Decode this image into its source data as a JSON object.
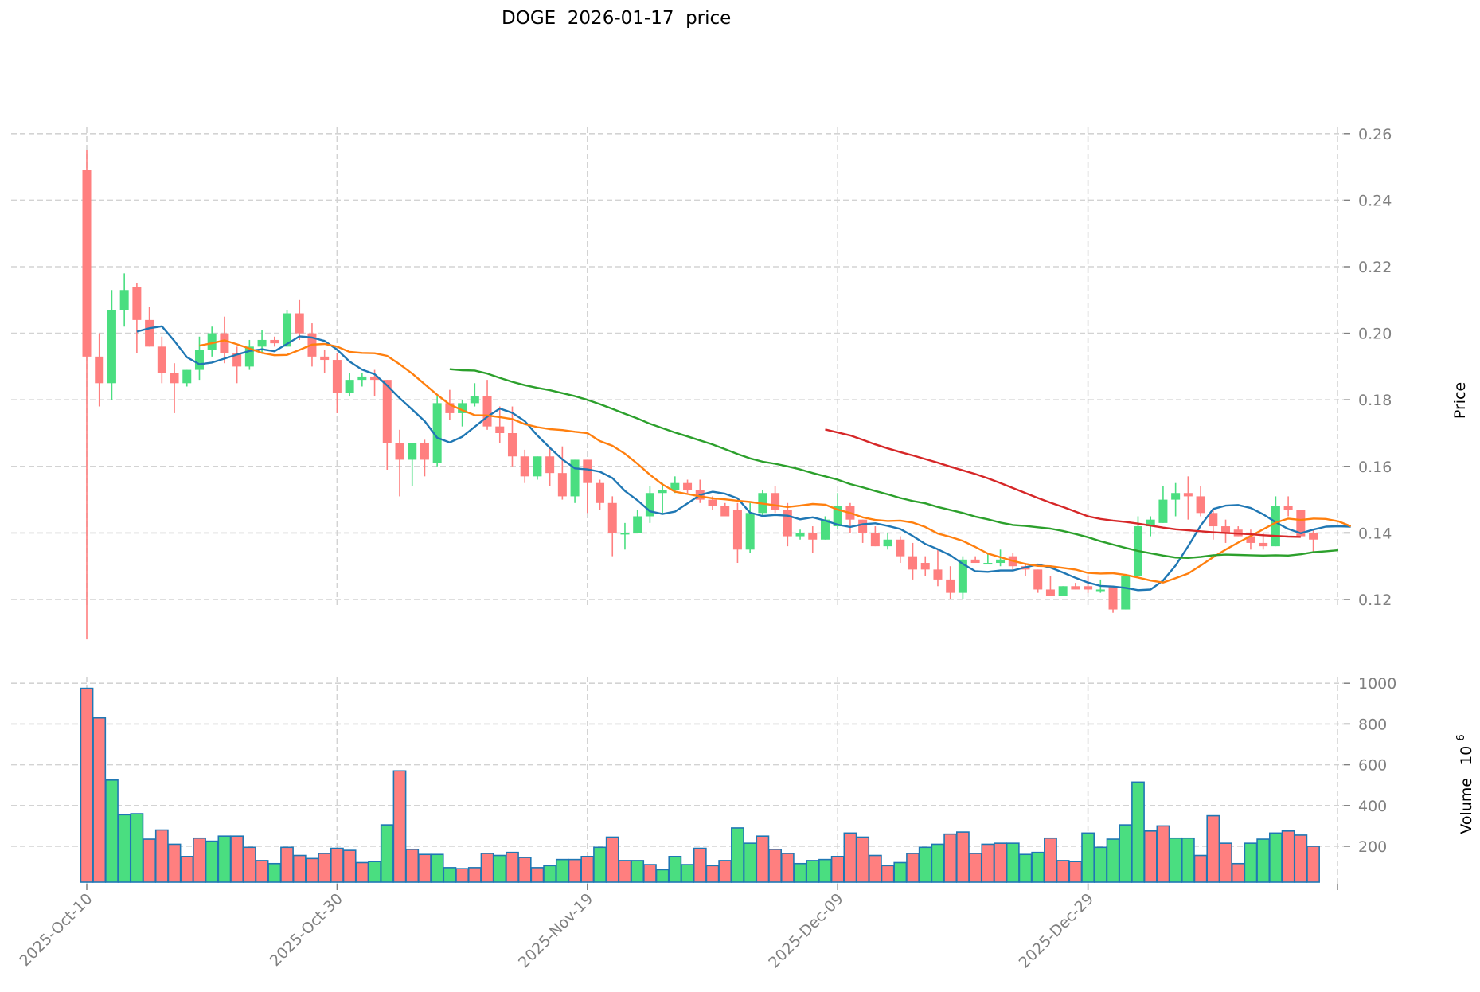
{
  "title": "DOGE  2026-01-17  price",
  "colors": {
    "up": "#4ade80",
    "down": "#ff7f7f",
    "volume_edge": "#1f77b4",
    "ma_short": "#1f77b4",
    "ma_mid": "#ff7f0e",
    "ma_long": "#2ca02c",
    "ma_longest": "#d62728",
    "grid": "#d3d3d3",
    "tick": "#808080"
  },
  "chart_data": [
    {
      "type": "candlestick",
      "title": "DOGE  2026-01-17  price",
      "ylabel": "Price",
      "ylim": [
        0.1,
        0.26
      ],
      "yticks": [
        0.12,
        0.14,
        0.16,
        0.18,
        0.2,
        0.22,
        0.24,
        0.26
      ],
      "ytick_labels": [
        "0.12",
        "0.14",
        "0.16",
        "0.18",
        "0.20",
        "0.22",
        "0.24",
        "0.26"
      ],
      "xticks": [
        "2025-Oct-10",
        "2025-Oct-30",
        "2025-Nov-19",
        "2025-Dec-09",
        "2025-Dec-29"
      ],
      "xtick_day_index": [
        0,
        20,
        40,
        60,
        80
      ],
      "grid": true,
      "start_date": "2025-10-10",
      "end_date": "2026-01-17",
      "ohlc": [
        [
          0.249,
          0.255,
          0.108,
          0.193
        ],
        [
          0.193,
          0.2,
          0.178,
          0.185
        ],
        [
          0.185,
          0.213,
          0.18,
          0.207
        ],
        [
          0.207,
          0.218,
          0.202,
          0.213
        ],
        [
          0.214,
          0.215,
          0.194,
          0.204
        ],
        [
          0.204,
          0.208,
          0.196,
          0.196
        ],
        [
          0.196,
          0.199,
          0.185,
          0.188
        ],
        [
          0.188,
          0.191,
          0.176,
          0.185
        ],
        [
          0.185,
          0.189,
          0.184,
          0.189
        ],
        [
          0.189,
          0.199,
          0.186,
          0.195
        ],
        [
          0.195,
          0.202,
          0.193,
          0.2
        ],
        [
          0.2,
          0.205,
          0.191,
          0.194
        ],
        [
          0.194,
          0.196,
          0.185,
          0.19
        ],
        [
          0.19,
          0.198,
          0.189,
          0.196
        ],
        [
          0.196,
          0.201,
          0.194,
          0.198
        ],
        [
          0.198,
          0.199,
          0.196,
          0.197
        ],
        [
          0.196,
          0.207,
          0.196,
          0.206
        ],
        [
          0.206,
          0.21,
          0.198,
          0.2
        ],
        [
          0.2,
          0.203,
          0.19,
          0.193
        ],
        [
          0.193,
          0.195,
          0.188,
          0.192
        ],
        [
          0.192,
          0.194,
          0.176,
          0.182
        ],
        [
          0.182,
          0.188,
          0.181,
          0.186
        ],
        [
          0.186,
          0.188,
          0.184,
          0.187
        ],
        [
          0.187,
          0.189,
          0.181,
          0.186
        ],
        [
          0.186,
          0.186,
          0.159,
          0.167
        ],
        [
          0.167,
          0.171,
          0.151,
          0.162
        ],
        [
          0.162,
          0.167,
          0.154,
          0.167
        ],
        [
          0.167,
          0.168,
          0.157,
          0.162
        ],
        [
          0.161,
          0.181,
          0.16,
          0.179
        ],
        [
          0.179,
          0.183,
          0.174,
          0.176
        ],
        [
          0.176,
          0.18,
          0.172,
          0.179
        ],
        [
          0.179,
          0.185,
          0.178,
          0.181
        ],
        [
          0.181,
          0.186,
          0.171,
          0.172
        ],
        [
          0.172,
          0.178,
          0.167,
          0.17
        ],
        [
          0.17,
          0.178,
          0.16,
          0.163
        ],
        [
          0.163,
          0.165,
          0.155,
          0.157
        ],
        [
          0.157,
          0.163,
          0.156,
          0.163
        ],
        [
          0.163,
          0.166,
          0.154,
          0.158
        ],
        [
          0.158,
          0.166,
          0.15,
          0.151
        ],
        [
          0.151,
          0.162,
          0.149,
          0.162
        ],
        [
          0.162,
          0.162,
          0.146,
          0.155
        ],
        [
          0.155,
          0.156,
          0.147,
          0.149
        ],
        [
          0.149,
          0.151,
          0.133,
          0.14
        ],
        [
          0.14,
          0.143,
          0.135,
          0.14
        ],
        [
          0.14,
          0.147,
          0.14,
          0.145
        ],
        [
          0.145,
          0.154,
          0.143,
          0.152
        ],
        [
          0.152,
          0.155,
          0.146,
          0.153
        ],
        [
          0.153,
          0.157,
          0.152,
          0.155
        ],
        [
          0.155,
          0.156,
          0.152,
          0.153
        ],
        [
          0.153,
          0.156,
          0.149,
          0.15
        ],
        [
          0.15,
          0.151,
          0.147,
          0.148
        ],
        [
          0.148,
          0.149,
          0.145,
          0.145
        ],
        [
          0.147,
          0.149,
          0.131,
          0.135
        ],
        [
          0.135,
          0.149,
          0.134,
          0.146
        ],
        [
          0.146,
          0.153,
          0.145,
          0.152
        ],
        [
          0.152,
          0.154,
          0.146,
          0.147
        ],
        [
          0.147,
          0.149,
          0.136,
          0.139
        ],
        [
          0.139,
          0.141,
          0.138,
          0.14
        ],
        [
          0.14,
          0.142,
          0.134,
          0.138
        ],
        [
          0.138,
          0.145,
          0.138,
          0.144
        ],
        [
          0.142,
          0.152,
          0.141,
          0.148
        ],
        [
          0.148,
          0.149,
          0.14,
          0.144
        ],
        [
          0.144,
          0.144,
          0.137,
          0.14
        ],
        [
          0.14,
          0.142,
          0.136,
          0.136
        ],
        [
          0.136,
          0.14,
          0.135,
          0.138
        ],
        [
          0.138,
          0.139,
          0.131,
          0.133
        ],
        [
          0.133,
          0.137,
          0.126,
          0.129
        ],
        [
          0.131,
          0.133,
          0.127,
          0.129
        ],
        [
          0.129,
          0.135,
          0.124,
          0.126
        ],
        [
          0.126,
          0.13,
          0.12,
          0.122
        ],
        [
          0.122,
          0.133,
          0.12,
          0.132
        ],
        [
          0.132,
          0.133,
          0.131,
          0.131
        ],
        [
          0.131,
          0.134,
          0.131,
          0.131
        ],
        [
          0.131,
          0.135,
          0.13,
          0.132
        ],
        [
          0.133,
          0.134,
          0.129,
          0.13
        ],
        [
          0.13,
          0.131,
          0.127,
          0.129
        ],
        [
          0.129,
          0.129,
          0.122,
          0.123
        ],
        [
          0.123,
          0.127,
          0.121,
          0.121
        ],
        [
          0.121,
          0.124,
          0.121,
          0.124
        ],
        [
          0.124,
          0.125,
          0.123,
          0.123
        ],
        [
          0.124,
          0.127,
          0.122,
          0.123
        ],
        [
          0.123,
          0.126,
          0.122,
          0.123
        ],
        [
          0.124,
          0.124,
          0.116,
          0.117
        ],
        [
          0.117,
          0.127,
          0.117,
          0.127
        ],
        [
          0.127,
          0.145,
          0.127,
          0.142
        ],
        [
          0.142,
          0.145,
          0.139,
          0.144
        ],
        [
          0.143,
          0.154,
          0.143,
          0.15
        ],
        [
          0.15,
          0.155,
          0.145,
          0.152
        ],
        [
          0.152,
          0.157,
          0.144,
          0.151
        ],
        [
          0.151,
          0.154,
          0.145,
          0.146
        ],
        [
          0.146,
          0.147,
          0.138,
          0.142
        ],
        [
          0.142,
          0.144,
          0.137,
          0.14
        ],
        [
          0.141,
          0.142,
          0.139,
          0.139
        ],
        [
          0.139,
          0.141,
          0.135,
          0.137
        ],
        [
          0.137,
          0.14,
          0.135,
          0.136
        ],
        [
          0.136,
          0.151,
          0.136,
          0.148
        ],
        [
          0.148,
          0.151,
          0.145,
          0.147
        ],
        [
          0.147,
          0.147,
          0.139,
          0.139
        ],
        [
          0.14,
          0.141,
          0.134,
          0.138
        ]
      ],
      "ma_series": [
        {
          "name": "MA short",
          "color": "#1f77b4",
          "start_index": 4,
          "values": [
            0.2005,
            0.2015,
            0.2021,
            0.1977,
            0.1928,
            0.1907,
            0.1912,
            0.1924,
            0.1936,
            0.1947,
            0.1952,
            0.1946,
            0.1968,
            0.1991,
            0.1987,
            0.1977,
            0.1951,
            0.1915,
            0.1891,
            0.1877,
            0.1843,
            0.1805,
            0.1771,
            0.1736,
            0.1686,
            0.1672,
            0.1689,
            0.1719,
            0.1749,
            0.1774,
            0.1761,
            0.1736,
            0.1693,
            0.1656,
            0.1621,
            0.1594,
            0.1591,
            0.1584,
            0.1565,
            0.1526,
            0.1498,
            0.1465,
            0.1457,
            0.1464,
            0.1489,
            0.1514,
            0.1524,
            0.1518,
            0.1504,
            0.1461,
            0.1451,
            0.1454,
            0.1452,
            0.1441,
            0.1447,
            0.1437,
            0.1425,
            0.1418,
            0.1426,
            0.1429,
            0.1421,
            0.1412,
            0.1391,
            0.1367,
            0.1351,
            0.1333,
            0.1307,
            0.1285,
            0.1283,
            0.1287,
            0.1287,
            0.1297,
            0.1305,
            0.1296,
            0.1281,
            0.1265,
            0.1251,
            0.1241,
            0.1239,
            0.1235,
            0.1228,
            0.123,
            0.1257,
            0.1302,
            0.136,
            0.1422,
            0.1472,
            0.1482,
            0.1484,
            0.1475,
            0.1456,
            0.1432,
            0.1412,
            0.1399,
            0.141,
            0.1419,
            0.142,
            0.1419
          ]
        },
        {
          "name": "MA mid",
          "color": "#ff7f0e",
          "start_index": 9,
          "values": [
            0.1963,
            0.197,
            0.1979,
            0.1967,
            0.1954,
            0.1941,
            0.1934,
            0.1935,
            0.195,
            0.1966,
            0.1968,
            0.196,
            0.1944,
            0.1941,
            0.194,
            0.1932,
            0.1907,
            0.1879,
            0.1847,
            0.1815,
            0.1786,
            0.1769,
            0.1754,
            0.1753,
            0.1748,
            0.1742,
            0.1727,
            0.1718,
            0.1712,
            0.1709,
            0.1704,
            0.17,
            0.1676,
            0.1662,
            0.1638,
            0.1608,
            0.1575,
            0.1546,
            0.1524,
            0.1517,
            0.151,
            0.1504,
            0.1501,
            0.1497,
            0.1493,
            0.1488,
            0.1483,
            0.1478,
            0.1482,
            0.1487,
            0.1485,
            0.147,
            0.146,
            0.1447,
            0.1439,
            0.1436,
            0.1437,
            0.1431,
            0.1418,
            0.1398,
            0.1388,
            0.1376,
            0.1358,
            0.1338,
            0.1327,
            0.1316,
            0.1307,
            0.1301,
            0.13,
            0.1295,
            0.129,
            0.128,
            0.1278,
            0.1279,
            0.1274,
            0.1266,
            0.1257,
            0.1251,
            0.1264,
            0.1278,
            0.1302,
            0.1327,
            0.135,
            0.1371,
            0.1391,
            0.1411,
            0.1431,
            0.1443,
            0.1439,
            0.1443,
            0.1442,
            0.1435,
            0.142
          ]
        },
        {
          "name": "MA long",
          "color": "#2ca02c",
          "start_index": 29,
          "values": [
            0.1892,
            0.1889,
            0.1888,
            0.1879,
            0.1866,
            0.1854,
            0.1844,
            0.1836,
            0.1829,
            0.182,
            0.1811,
            0.18,
            0.1787,
            0.1773,
            0.1758,
            0.1744,
            0.1728,
            0.1715,
            0.1702,
            0.169,
            0.1678,
            0.1666,
            0.1652,
            0.1637,
            0.1624,
            0.1614,
            0.1608,
            0.16,
            0.1591,
            0.158,
            0.157,
            0.156,
            0.1547,
            0.1537,
            0.1526,
            0.1516,
            0.1505,
            0.1496,
            0.1489,
            0.1478,
            0.1469,
            0.146,
            0.1449,
            0.1441,
            0.1431,
            0.1424,
            0.1421,
            0.1417,
            0.1413,
            0.1406,
            0.1397,
            0.1387,
            0.1375,
            0.1365,
            0.1355,
            0.1346,
            0.1339,
            0.1332,
            0.1326,
            0.1325,
            0.1328,
            0.1333,
            0.1335,
            0.1334,
            0.1333,
            0.1332,
            0.1333,
            0.1332,
            0.1336,
            0.1342,
            0.1345,
            0.1348
          ]
        },
        {
          "name": "MA longest",
          "color": "#d62728",
          "start_index": 59,
          "values": [
            0.1711,
            0.1702,
            0.1693,
            0.168,
            0.1666,
            0.1654,
            0.1643,
            0.1633,
            0.1622,
            0.1611,
            0.1599,
            0.1588,
            0.1577,
            0.1564,
            0.155,
            0.1535,
            0.152,
            0.1505,
            0.1491,
            0.1478,
            0.1464,
            0.145,
            0.1442,
            0.1437,
            0.1433,
            0.1428,
            0.1422,
            0.1416,
            0.1411,
            0.1408,
            0.1405,
            0.1402,
            0.14,
            0.1398,
            0.1396,
            0.1393,
            0.1391,
            0.1389,
            0.1388
          ]
        }
      ]
    },
    {
      "type": "bar",
      "ylabel": "Volume  10^6",
      "ylabel_main": "Volume",
      "ylabel_exp": "10",
      "ylabel_sup": "6",
      "ylim": [
        25,
        1050
      ],
      "yticks": [
        200,
        400,
        600,
        800,
        1000
      ],
      "ytick_labels": [
        "200",
        "400",
        "600",
        "800",
        "1000"
      ],
      "values": [
        975,
        830,
        525,
        355,
        360,
        235,
        280,
        210,
        150,
        240,
        225,
        250,
        250,
        195,
        130,
        115,
        195,
        155,
        140,
        165,
        190,
        180,
        120,
        125,
        305,
        570,
        185,
        160,
        160,
        95,
        90,
        95,
        165,
        155,
        170,
        145,
        95,
        105,
        135,
        135,
        150,
        195,
        245,
        130,
        130,
        110,
        85,
        150,
        110,
        190,
        105,
        130,
        290,
        215,
        250,
        185,
        165,
        115,
        130,
        135,
        150,
        265,
        245,
        155,
        105,
        120,
        165,
        195,
        210,
        260,
        270,
        165,
        210,
        215,
        215,
        160,
        170,
        240,
        130,
        125,
        265,
        195,
        235,
        305,
        515,
        275,
        300,
        240,
        240,
        155,
        350,
        215,
        115,
        215,
        235,
        265,
        275,
        255,
        200
      ],
      "directions": "dduuuddddduuddduddddddduuddduuddduddduuddudduduuuddduuddduuuddddduduuddddduuuddduuuuudduudddduuudddd"
    }
  ],
  "axes": {
    "price_label": "Price",
    "volume_label_main": "Volume",
    "volume_label_exp": "10",
    "volume_label_sup": "6"
  }
}
